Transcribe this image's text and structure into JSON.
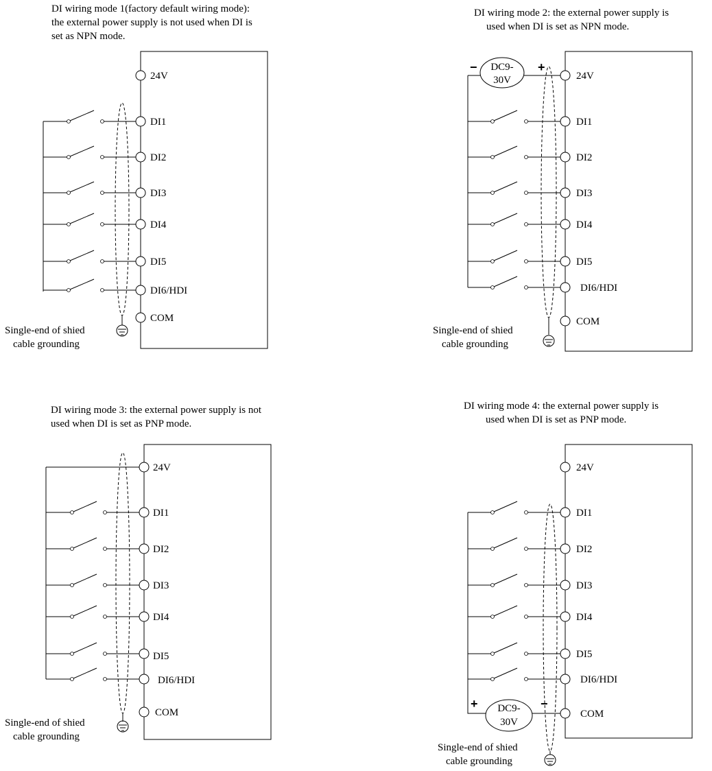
{
  "panels": [
    {
      "id": "mode1",
      "title_lines": [
        "DI wiring mode 1(factory default wiring mode):",
        "the external power supply is not used when DI is",
        "set as NPN mode."
      ],
      "terminals": [
        "24V",
        "DI1",
        "DI2",
        "DI3",
        "DI4",
        "DI5",
        "DI6/HDI",
        "COM"
      ],
      "ground_label_lines": [
        "Single-end of shied",
        "cable grounding"
      ]
    },
    {
      "id": "mode2",
      "title_lines": [
        "DI wiring mode 2: the external power supply is",
        "used when DI is set as NPN mode."
      ],
      "terminals": [
        "24V",
        "DI1",
        "DI2",
        "DI3",
        "DI4",
        "DI5",
        "DI6/HDI",
        "COM"
      ],
      "supply_lines": [
        "DC9-",
        "30V"
      ],
      "supply_left_sign": "−",
      "supply_right_sign": "+",
      "ground_label_lines": [
        "Single-end of shied",
        "cable grounding"
      ]
    },
    {
      "id": "mode3",
      "title_lines": [
        "DI wiring mode 3: the external power supply is not",
        "used when DI is set as PNP mode."
      ],
      "terminals": [
        "24V",
        "DI1",
        "DI2",
        "DI3",
        "DI4",
        "DI5",
        "DI6/HDI",
        "COM"
      ],
      "ground_label_lines": [
        "Single-end of shied",
        "cable grounding"
      ]
    },
    {
      "id": "mode4",
      "title_lines": [
        "DI wiring mode 4: the external power supply is",
        "used when DI is set as PNP mode."
      ],
      "terminals": [
        "24V",
        "DI1",
        "DI2",
        "DI3",
        "DI4",
        "DI5",
        "DI6/HDI",
        "COM"
      ],
      "supply_lines": [
        "DC9-",
        "30V"
      ],
      "supply_left_sign": "+",
      "supply_right_sign": "−",
      "ground_label_lines": [
        "Single-end of shied",
        "cable grounding"
      ]
    }
  ]
}
